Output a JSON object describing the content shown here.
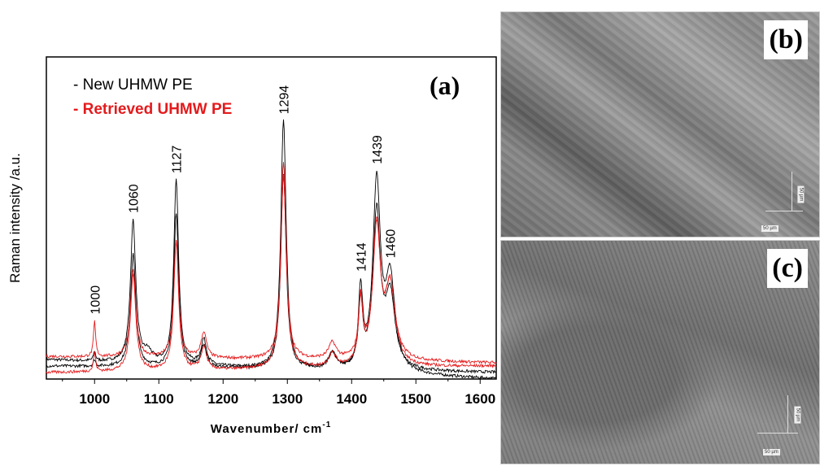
{
  "chart_data": {
    "type": "line",
    "title": "(a)",
    "xlabel": "Wavenumber/ cm",
    "xlabel_sup": "-1",
    "ylabel": "Raman intensity /a.u.",
    "xlim": [
      925,
      1625
    ],
    "ylim": [
      0,
      100
    ],
    "xticks": [
      1000,
      1100,
      1200,
      1300,
      1400,
      1500,
      1600
    ],
    "legend": [
      {
        "label": "- New UHMW PE",
        "color": "#000000"
      },
      {
        "label": "- Retrieved UHMW PE",
        "color": "#e41a1c"
      }
    ],
    "legend_position": "top-left",
    "peak_labels": [
      1000,
      1060,
      1127,
      1294,
      1414,
      1439,
      1460
    ],
    "series": [
      {
        "name": "New UHMW PE 1",
        "color": "#000000",
        "baseline": [
          6,
          0
        ],
        "peaks": [
          [
            1000,
            3,
            2
          ],
          [
            1060,
            44,
            5
          ],
          [
            1083,
            3,
            8
          ],
          [
            1127,
            57,
            4.5
          ],
          [
            1170,
            8,
            5
          ],
          [
            1294,
            77,
            5
          ],
          [
            1370,
            5,
            7
          ],
          [
            1414,
            24,
            4
          ],
          [
            1439,
            58,
            7
          ],
          [
            1460,
            28,
            9
          ]
        ]
      },
      {
        "name": "New UHMW PE 2",
        "color": "#000000",
        "baseline": [
          4,
          2
        ],
        "peaks": [
          [
            1000,
            2,
            2
          ],
          [
            1060,
            35,
            5
          ],
          [
            1127,
            48,
            4.5
          ],
          [
            1170,
            7,
            5
          ],
          [
            1294,
            60,
            5
          ],
          [
            1370,
            5,
            7
          ],
          [
            1414,
            20,
            4
          ],
          [
            1439,
            48,
            7
          ],
          [
            1460,
            22,
            9
          ]
        ]
      },
      {
        "name": "Retrieved UHMW PE 1",
        "color": "#e41a1c",
        "baseline": [
          7,
          5
        ],
        "peaks": [
          [
            1000,
            11,
            2
          ],
          [
            1060,
            27,
            5
          ],
          [
            1127,
            36,
            4.5
          ],
          [
            1170,
            8,
            5
          ],
          [
            1294,
            57,
            5
          ],
          [
            1370,
            5,
            7
          ],
          [
            1414,
            18,
            4
          ],
          [
            1439,
            40,
            7
          ],
          [
            1460,
            22,
            9
          ]
        ]
      },
      {
        "name": "Retrieved UHMW PE 2",
        "color": "#e41a1c",
        "baseline": [
          2,
          4
        ],
        "peaks": [
          [
            1000,
            6,
            2
          ],
          [
            1060,
            30,
            5
          ],
          [
            1127,
            40,
            4.5
          ],
          [
            1170,
            7,
            5
          ],
          [
            1294,
            64,
            5
          ],
          [
            1370,
            4,
            7
          ],
          [
            1414,
            19,
            4
          ],
          [
            1439,
            43,
            7
          ],
          [
            1460,
            24,
            9
          ]
        ]
      }
    ]
  },
  "panels": {
    "b": {
      "label": "(b)",
      "scale_h": "50 µm",
      "scale_v": "50 µm"
    },
    "c": {
      "label": "(c)",
      "scale_h": "50 µm",
      "scale_v": "50 µm"
    }
  }
}
